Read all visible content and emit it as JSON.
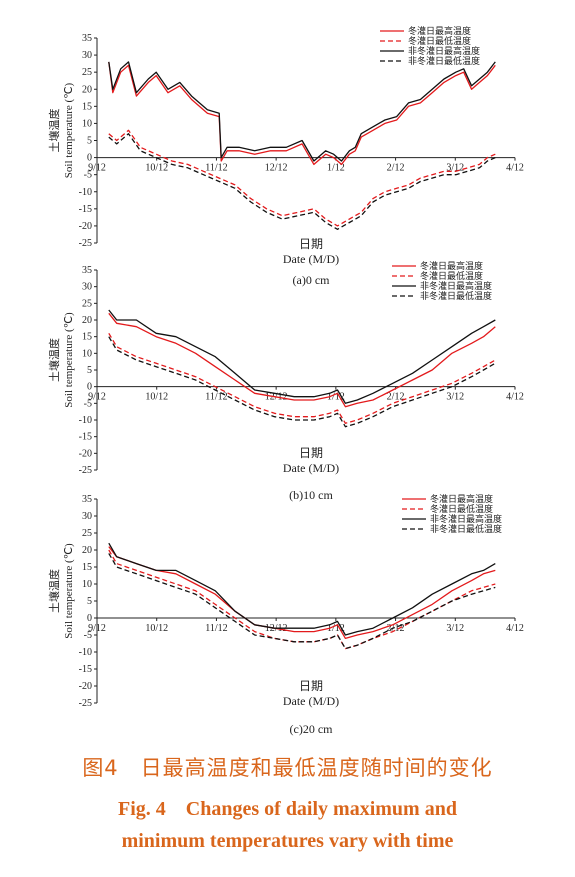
{
  "chart_data": [
    {
      "type": "line",
      "panel_label": "(a)0 cm",
      "xlabel_cn": "日期",
      "xlabel_en": "Date (M/D)",
      "ylabel_cn": "土壤温度",
      "ylabel_en": "Soil temperature (℃)",
      "ylim": [
        -25,
        35
      ],
      "yticks": [
        -25,
        -20,
        -15,
        -10,
        -5,
        0,
        5,
        10,
        15,
        20,
        25,
        30,
        35
      ],
      "xticks": [
        "9/12",
        "10/12",
        "11/12",
        "12/12",
        "1/12",
        "2/12",
        "3/12",
        "4/12"
      ],
      "xlim_days": [
        0,
        212
      ],
      "series": [
        {
          "name": "冬灌日最高温度",
          "color": "#e31a1c",
          "dash": "solid",
          "x": [
            6,
            8,
            12,
            16,
            20,
            26,
            30,
            36,
            42,
            48,
            56,
            62,
            63,
            66,
            72,
            80,
            88,
            96,
            104,
            110,
            116,
            120,
            124,
            128,
            131,
            134,
            140,
            146,
            152,
            158,
            164,
            170,
            176,
            182,
            186,
            190,
            194,
            198,
            202
          ],
          "y": [
            28,
            19,
            25,
            27,
            18,
            22,
            24,
            19,
            21,
            17,
            13,
            12,
            -1,
            2,
            2,
            1,
            2,
            2,
            4,
            -2,
            1,
            0,
            -2,
            1,
            2,
            6,
            8,
            10,
            11,
            15,
            16,
            19,
            22,
            24,
            25,
            20,
            22,
            24,
            27
          ]
        },
        {
          "name": "冬灌日最低温度",
          "color": "#e31a1c",
          "dash": "dashed",
          "x": [
            6,
            10,
            16,
            22,
            30,
            38,
            46,
            54,
            62,
            70,
            78,
            86,
            94,
            102,
            110,
            116,
            122,
            128,
            134,
            140,
            146,
            152,
            158,
            164,
            170,
            176,
            182,
            188,
            194,
            198,
            202
          ],
          "y": [
            7,
            5,
            8,
            3,
            1,
            -1,
            -2,
            -4,
            -6,
            -8,
            -12,
            -15,
            -17,
            -16,
            -15,
            -18,
            -20,
            -18,
            -16,
            -12,
            -10,
            -9,
            -8,
            -6,
            -5,
            -4,
            -4,
            -3,
            -2,
            0,
            1
          ]
        },
        {
          "name": "非冬灌日最高温度",
          "color": "#111111",
          "dash": "solid",
          "x": [
            6,
            8,
            12,
            16,
            20,
            26,
            30,
            36,
            42,
            48,
            56,
            62,
            63,
            66,
            72,
            80,
            88,
            96,
            104,
            110,
            116,
            120,
            124,
            128,
            131,
            134,
            140,
            146,
            152,
            158,
            164,
            170,
            176,
            182,
            186,
            190,
            194,
            198,
            202
          ],
          "y": [
            28,
            20,
            26,
            28,
            19,
            23,
            25,
            20,
            22,
            18,
            14,
            13,
            0,
            3,
            3,
            2,
            3,
            3,
            5,
            -1,
            2,
            1,
            -1,
            2,
            3,
            7,
            9,
            11,
            12,
            16,
            17,
            20,
            23,
            25,
            26,
            21,
            23,
            25,
            28
          ]
        },
        {
          "name": "非冬灌日最低温度",
          "color": "#111111",
          "dash": "dashed",
          "x": [
            6,
            10,
            16,
            22,
            30,
            38,
            46,
            54,
            62,
            70,
            78,
            86,
            94,
            102,
            110,
            116,
            122,
            128,
            134,
            140,
            146,
            152,
            158,
            164,
            170,
            176,
            182,
            188,
            194,
            198,
            202
          ],
          "y": [
            6,
            4,
            7,
            2,
            0,
            -2,
            -3,
            -5,
            -7,
            -9,
            -13,
            -16,
            -18,
            -17,
            -16,
            -19,
            -21,
            -19,
            -17,
            -13,
            -11,
            -10,
            -9,
            -7,
            -6,
            -5,
            -5,
            -4,
            -3,
            -1,
            0
          ]
        }
      ]
    },
    {
      "type": "line",
      "panel_label": "(b)10 cm",
      "xlabel_cn": "日期",
      "xlabel_en": "Date (M/D)",
      "ylabel_cn": "土壤温度",
      "ylabel_en": "Soil temperature (℃)",
      "ylim": [
        -25,
        35
      ],
      "yticks": [
        -25,
        -20,
        -15,
        -10,
        -5,
        0,
        5,
        10,
        15,
        20,
        25,
        30,
        35
      ],
      "xticks": [
        "9/12",
        "10/12",
        "11/12",
        "12/12",
        "1/12",
        "2/12",
        "3/12",
        "4/12"
      ],
      "xlim_days": [
        0,
        212
      ],
      "series": [
        {
          "name": "冬灌日最高温度",
          "color": "#e31a1c",
          "dash": "solid",
          "x": [
            6,
            10,
            20,
            30,
            40,
            50,
            60,
            70,
            80,
            90,
            100,
            110,
            118,
            122,
            126,
            132,
            140,
            150,
            160,
            170,
            180,
            190,
            196,
            202
          ],
          "y": [
            22,
            19,
            18,
            15,
            13,
            10,
            6,
            2,
            -2,
            -3,
            -4,
            -4,
            -3,
            -2,
            -6,
            -5,
            -4,
            -1,
            2,
            5,
            10,
            13,
            15,
            18
          ]
        },
        {
          "name": "冬灌日最低温度",
          "color": "#e31a1c",
          "dash": "dashed",
          "x": [
            6,
            10,
            20,
            30,
            40,
            50,
            60,
            70,
            80,
            90,
            100,
            110,
            118,
            122,
            126,
            132,
            140,
            150,
            160,
            170,
            180,
            190,
            196,
            202
          ],
          "y": [
            16,
            12,
            9,
            7,
            5,
            3,
            0,
            -3,
            -6,
            -8,
            -9,
            -9,
            -8,
            -7,
            -11,
            -10,
            -8,
            -5,
            -3,
            -1,
            1,
            4,
            6,
            8
          ]
        },
        {
          "name": "非冬灌日最高温度",
          "color": "#111111",
          "dash": "solid",
          "x": [
            6,
            10,
            20,
            30,
            40,
            50,
            60,
            70,
            80,
            90,
            100,
            110,
            118,
            122,
            126,
            132,
            140,
            150,
            160,
            170,
            180,
            190,
            196,
            202
          ],
          "y": [
            23,
            20,
            20,
            16,
            15,
            12,
            9,
            4,
            -1,
            -2,
            -3,
            -3,
            -2,
            -1,
            -5,
            -4,
            -2,
            1,
            4,
            8,
            12,
            16,
            18,
            20
          ]
        },
        {
          "name": "非冬灌日最低温度",
          "color": "#111111",
          "dash": "dashed",
          "x": [
            6,
            10,
            20,
            30,
            40,
            50,
            60,
            70,
            80,
            90,
            100,
            110,
            118,
            122,
            126,
            132,
            140,
            150,
            160,
            170,
            180,
            190,
            196,
            202
          ],
          "y": [
            15,
            11,
            8,
            6,
            4,
            2,
            -1,
            -4,
            -7,
            -9,
            -10,
            -10,
            -9,
            -8,
            -12,
            -11,
            -9,
            -6,
            -4,
            -2,
            0,
            3,
            5,
            7
          ]
        }
      ]
    },
    {
      "type": "line",
      "panel_label": "(c)20 cm",
      "xlabel_cn": "日期",
      "xlabel_en": "Date (M/D)",
      "ylabel_cn": "土壤温度",
      "ylabel_en": "Soil temperature (℃)",
      "ylim": [
        -25,
        35
      ],
      "yticks": [
        -25,
        -20,
        -15,
        -10,
        -5,
        0,
        5,
        10,
        15,
        20,
        25,
        30,
        35
      ],
      "xticks": [
        "9/12",
        "10/12",
        "11/12",
        "12/12",
        "1/12",
        "2/12",
        "3/12",
        "4/12"
      ],
      "xlim_days": [
        0,
        212
      ],
      "series": [
        {
          "name": "冬灌日最高温度",
          "color": "#e31a1c",
          "dash": "solid",
          "x": [
            6,
            10,
            20,
            30,
            40,
            50,
            60,
            70,
            80,
            90,
            100,
            110,
            118,
            122,
            126,
            132,
            140,
            150,
            160,
            170,
            180,
            190,
            196,
            202
          ],
          "y": [
            21,
            18,
            16,
            14,
            13,
            10,
            7,
            2,
            -2,
            -3,
            -4,
            -4,
            -3,
            -2,
            -6,
            -5,
            -4,
            -2,
            1,
            4,
            8,
            11,
            13,
            14
          ]
        },
        {
          "name": "冬灌日最低温度",
          "color": "#e31a1c",
          "dash": "dashed",
          "x": [
            6,
            10,
            20,
            30,
            40,
            50,
            60,
            70,
            80,
            90,
            100,
            110,
            118,
            122,
            126,
            132,
            140,
            150,
            160,
            170,
            180,
            190,
            196,
            202
          ],
          "y": [
            20,
            16,
            14,
            12,
            10,
            8,
            4,
            0,
            -4,
            -6,
            -7,
            -7,
            -6,
            -5,
            -9,
            -8,
            -6,
            -4,
            -1,
            2,
            5,
            8,
            9,
            10
          ]
        },
        {
          "name": "非冬灌日最高温度",
          "color": "#111111",
          "dash": "solid",
          "x": [
            6,
            10,
            20,
            30,
            40,
            50,
            60,
            70,
            80,
            90,
            100,
            110,
            118,
            122,
            126,
            132,
            140,
            150,
            160,
            170,
            180,
            190,
            196,
            202
          ],
          "y": [
            22,
            18,
            16,
            14,
            14,
            11,
            8,
            2,
            -2,
            -3,
            -3,
            -3,
            -2,
            -1,
            -5,
            -4,
            -3,
            0,
            3,
            7,
            10,
            13,
            14,
            16
          ]
        },
        {
          "name": "非冬灌日最低温度",
          "color": "#111111",
          "dash": "dashed",
          "x": [
            6,
            10,
            20,
            30,
            40,
            50,
            60,
            70,
            80,
            90,
            100,
            110,
            118,
            122,
            126,
            132,
            140,
            150,
            160,
            170,
            180,
            190,
            196,
            202
          ],
          "y": [
            19,
            15,
            13,
            11,
            9,
            7,
            3,
            -1,
            -5,
            -6,
            -7,
            -7,
            -6,
            -5,
            -9,
            -8,
            -6,
            -3,
            -1,
            2,
            5,
            7,
            8,
            9
          ]
        }
      ]
    }
  ],
  "caption": {
    "cn": "图4　日最高温度和最低温度随时间的变化",
    "en_line1": "Fig. 4　Changes of daily maximum and",
    "en_line2": "minimum temperatures vary with time"
  }
}
